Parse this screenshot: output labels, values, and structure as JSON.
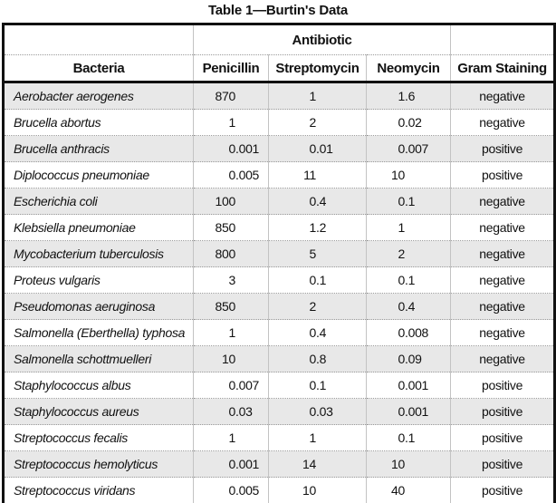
{
  "title": "Table 1—Burtin's Data",
  "chart_data": {
    "type": "table",
    "group_header": "Antibiotic",
    "columns": [
      "Bacteria",
      "Penicillin",
      "Streptomycin",
      "Neomycin",
      "Gram Staining"
    ],
    "rows": [
      [
        "Aerobacter aerogenes",
        "870",
        "1",
        "1.6",
        "negative"
      ],
      [
        "Brucella abortus",
        "1",
        "2",
        "0.02",
        "negative"
      ],
      [
        "Brucella anthracis",
        "0.001",
        "0.01",
        "0.007",
        "positive"
      ],
      [
        "Diplococcus pneumoniae",
        "0.005",
        "11",
        "10",
        "positive"
      ],
      [
        "Escherichia coli",
        "100",
        "0.4",
        "0.1",
        "negative"
      ],
      [
        "Klebsiella pneumoniae",
        "850",
        "1.2",
        "1",
        "negative"
      ],
      [
        "Mycobacterium tuberculosis",
        "800",
        "5",
        "2",
        "negative"
      ],
      [
        "Proteus vulgaris",
        "3",
        "0.1",
        "0.1",
        "negative"
      ],
      [
        "Pseudomonas aeruginosa",
        "850",
        "2",
        "0.4",
        "negative"
      ],
      [
        "Salmonella (Eberthella) typhosa",
        "1",
        "0.4",
        "0.008",
        "negative"
      ],
      [
        "Salmonella schottmuelleri",
        "10",
        "0.8",
        "0.09",
        "negative"
      ],
      [
        "Staphylococcus albus",
        "0.007",
        "0.1",
        "0.001",
        "positive"
      ],
      [
        "Staphylococcus aureus",
        "0.03",
        "0.03",
        "0.001",
        "positive"
      ],
      [
        "Streptococcus fecalis",
        "1",
        "1",
        "0.1",
        "positive"
      ],
      [
        "Streptococcus hemolyticus",
        "0.001",
        "14",
        "10",
        "positive"
      ],
      [
        "Streptococcus viridans",
        "0.005",
        "10",
        "40",
        "positive"
      ]
    ]
  },
  "colors": {
    "row_stripe": "#e8e8e8",
    "grid_line": "#c3c3c3",
    "dotted_line": "#9a9a9a",
    "frame": "#111111",
    "background": "#ffffff",
    "text": "#111111"
  }
}
